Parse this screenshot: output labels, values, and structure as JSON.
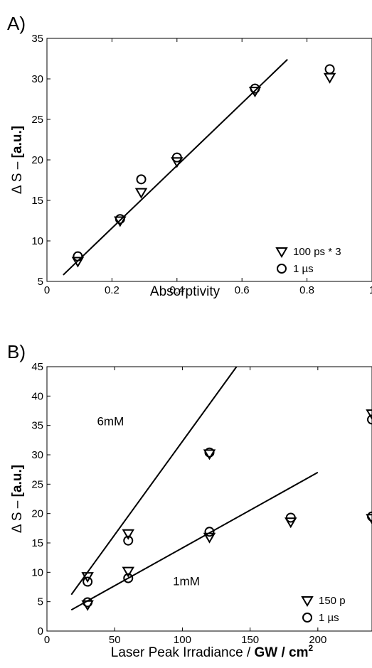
{
  "chart_data": [
    {
      "type": "scatter",
      "panel_label": "A)",
      "xlabel": "Absorptivity",
      "ylabel_prefix": "Δ S – ",
      "ylabel_bold": "[a.u.]",
      "xlim": [
        0,
        1
      ],
      "ylim": [
        5,
        35
      ],
      "xticks": [
        "0",
        "0.2",
        "0.4",
        "0.6",
        "0.8",
        "1"
      ],
      "yticks": [
        "5",
        "10",
        "15",
        "20",
        "25",
        "30",
        "35"
      ],
      "series": [
        {
          "name": "100 ps * 3",
          "marker": "triangle-down",
          "x": [
            0.095,
            0.225,
            0.29,
            0.4,
            0.64,
            0.87
          ],
          "y": [
            7.5,
            12.5,
            16.0,
            19.8,
            28.5,
            30.2
          ]
        },
        {
          "name": "1 µs",
          "marker": "circle",
          "x": [
            0.095,
            0.225,
            0.29,
            0.4,
            0.64,
            0.87
          ],
          "y": [
            8.1,
            12.7,
            17.6,
            20.3,
            28.8,
            31.2
          ]
        }
      ],
      "fits": [
        {
          "x": [
            0.05,
            0.74
          ],
          "y": [
            5.8,
            32.4
          ]
        }
      ],
      "annotations": []
    },
    {
      "type": "scatter",
      "panel_label": "B)",
      "xlabel_prefix": "Laser Peak Irradiance / ",
      "xlabel_bold": "GW / cm",
      "xlabel_sup": "2",
      "ylabel_prefix": "Δ S – ",
      "ylabel_bold": "[a.u.]",
      "xlim": [
        0,
        240
      ],
      "ylim": [
        0,
        45
      ],
      "xticks": [
        "0",
        "50",
        "100",
        "150",
        "200"
      ],
      "xtick_values": [
        0,
        50,
        100,
        150,
        200
      ],
      "yticks": [
        "0",
        "5",
        "10",
        "15",
        "20",
        "25",
        "30",
        "35",
        "40",
        "45"
      ],
      "series": [
        {
          "name": "150 p",
          "marker": "triangle-down",
          "x": [
            30,
            60,
            120,
            30,
            60,
            120,
            180,
            240,
            240
          ],
          "y": [
            9.3,
            16.6,
            30.2,
            4.5,
            10.2,
            16.0,
            18.6,
            37.0,
            19.2
          ]
        },
        {
          "name": "1 µs",
          "marker": "circle",
          "x": [
            30,
            60,
            120,
            30,
            60,
            120,
            180,
            240,
            240
          ],
          "y": [
            8.4,
            15.4,
            30.4,
            4.9,
            9.0,
            16.9,
            19.3,
            36.0,
            19.5
          ]
        }
      ],
      "fits": [
        {
          "x": [
            18,
            140
          ],
          "y": [
            6.2,
            45
          ]
        },
        {
          "x": [
            18,
            200
          ],
          "y": [
            3.6,
            27.0
          ]
        }
      ],
      "annotations": [
        {
          "text": "6mM",
          "x": 37,
          "y": 35
        },
        {
          "text": "1mM",
          "x": 93,
          "y": 7.8
        }
      ]
    }
  ]
}
